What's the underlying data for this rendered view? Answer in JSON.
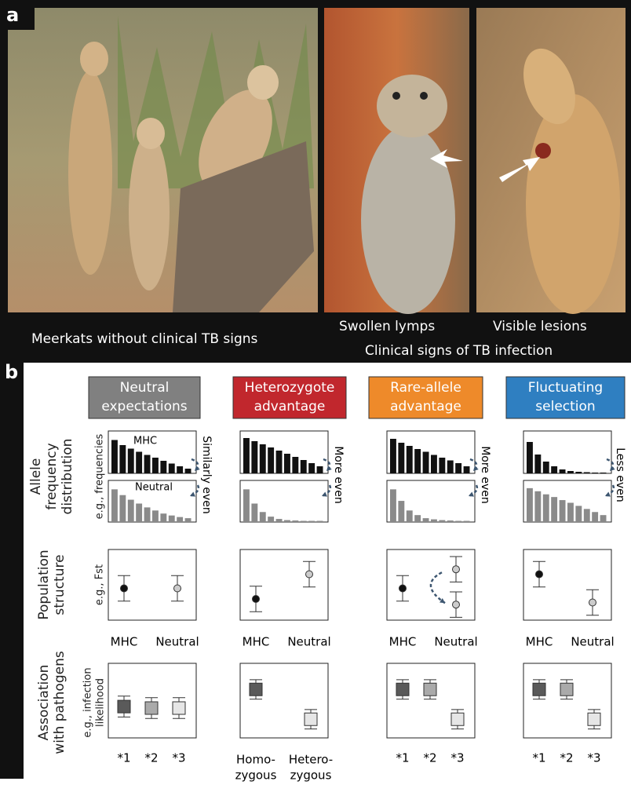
{
  "panel_a": {
    "label": "a",
    "captions": {
      "left": "Meerkats without clinical TB signs",
      "middle": "Swollen lymps",
      "right": "Visible lesions",
      "group": "Clinical signs of TB infection"
    }
  },
  "panel_b": {
    "label": "b",
    "row_labels": [
      {
        "title": [
          "Allele",
          "frequency",
          "distribution"
        ],
        "axis": [
          "e.g., frequencies"
        ]
      },
      {
        "title": [
          "Population",
          "structure"
        ],
        "axis": [
          "e.g., Fst"
        ]
      },
      {
        "title": [
          "Association",
          "with pathogens"
        ],
        "axis": [
          "e.g., infection",
          "likelihood"
        ]
      }
    ],
    "columns": [
      {
        "title": [
          "Neutral",
          "expectations"
        ],
        "color": "#808080",
        "allele": {
          "mhc_label": "MHC",
          "neutral_label": "Neutral",
          "note": "Similarly even",
          "mhc": [
            85,
            72,
            63,
            55,
            47,
            40,
            32,
            25,
            18,
            12
          ],
          "neutral": [
            85,
            70,
            58,
            48,
            38,
            30,
            22,
            17,
            13,
            10
          ]
        },
        "population": {
          "categories": [
            "MHC",
            "Neutral"
          ],
          "mhc": [
            {
              "value": 45,
              "error": 18
            }
          ],
          "neutral": [
            {
              "value": 45,
              "error": 18
            }
          ]
        },
        "association": {
          "categories": [
            [
              "*1"
            ],
            [
              "*2"
            ],
            [
              "*3"
            ]
          ],
          "points": [
            {
              "value": 42,
              "error": 14
            },
            {
              "value": 40,
              "error": 14
            },
            {
              "value": 40,
              "error": 14
            }
          ]
        }
      },
      {
        "title": [
          "Heterozygote",
          "advantage"
        ],
        "color": "#c1272d",
        "allele": {
          "note": "More even",
          "mhc": [
            90,
            82,
            74,
            66,
            58,
            50,
            42,
            34,
            26,
            18
          ],
          "neutral": [
            85,
            48,
            26,
            14,
            8,
            5,
            4,
            3,
            3,
            3
          ]
        },
        "population": {
          "categories": [
            "MHC",
            "Neutral"
          ],
          "mhc": [
            {
              "value": 30,
              "error": 18
            }
          ],
          "neutral": [
            {
              "value": 65,
              "error": 18
            }
          ]
        },
        "association": {
          "categories": [
            [
              "Homo-",
              "zygous"
            ],
            [
              "Hetero-",
              "zygous"
            ]
          ],
          "points": [
            {
              "value": 65,
              "error": 13
            },
            {
              "value": 25,
              "error": 13
            }
          ]
        }
      },
      {
        "title": [
          "Rare-allele",
          "advantage"
        ],
        "color": "#ee8a2a",
        "allele": {
          "note": "More even",
          "mhc": [
            88,
            78,
            70,
            62,
            55,
            47,
            40,
            33,
            26,
            18
          ],
          "neutral": [
            85,
            55,
            30,
            18,
            10,
            7,
            5,
            4,
            3,
            3
          ]
        },
        "population": {
          "categories": [
            "MHC",
            "Neutral"
          ],
          "mhc": [
            {
              "value": 45,
              "error": 18
            }
          ],
          "neutral": [
            {
              "value": 72,
              "error": 18
            },
            {
              "value": 22,
              "error": 18
            }
          ]
        },
        "association": {
          "categories": [
            [
              "*1"
            ],
            [
              "*2"
            ],
            [
              "*3"
            ]
          ],
          "points": [
            {
              "value": 65,
              "error": 13
            },
            {
              "value": 65,
              "error": 13
            },
            {
              "value": 25,
              "error": 13
            }
          ]
        }
      },
      {
        "title": [
          "Fluctuating",
          "selection"
        ],
        "color": "#2f7fc1",
        "allele": {
          "note": "Less even",
          "mhc": [
            80,
            48,
            30,
            18,
            10,
            6,
            4,
            3,
            2,
            2
          ],
          "neutral": [
            88,
            80,
            72,
            65,
            57,
            50,
            42,
            34,
            26,
            18
          ]
        },
        "population": {
          "categories": [
            "MHC",
            "Neutral"
          ],
          "mhc": [
            {
              "value": 65,
              "error": 18
            }
          ],
          "neutral": [
            {
              "value": 25,
              "error": 18
            }
          ]
        },
        "association": {
          "categories": [
            [
              "*1"
            ],
            [
              "*2"
            ],
            [
              "*3"
            ]
          ],
          "points": [
            {
              "value": 65,
              "error": 13
            },
            {
              "value": 65,
              "error": 13
            },
            {
              "value": 25,
              "error": 13
            }
          ]
        }
      }
    ]
  }
}
